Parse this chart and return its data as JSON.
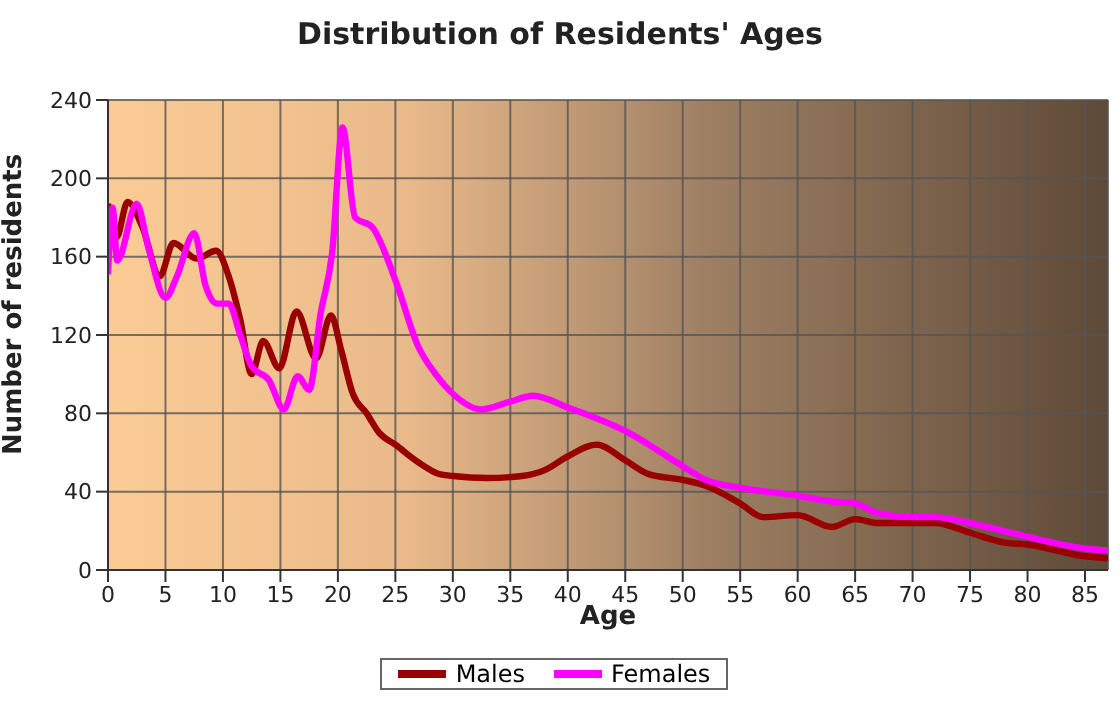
{
  "chart_data": {
    "type": "line",
    "title": "Distribution of Residents' Ages",
    "xlabel": "Age",
    "ylabel": "Number of residents",
    "xlim": [
      0,
      87
    ],
    "xticks": [
      0,
      5,
      10,
      15,
      20,
      25,
      30,
      35,
      40,
      45,
      50,
      55,
      60,
      65,
      70,
      75,
      80,
      85
    ],
    "ylim": [
      0,
      240
    ],
    "yticks": [
      0,
      40,
      80,
      120,
      160,
      200,
      240
    ],
    "grid": true,
    "legend": "bottom",
    "marker": "none",
    "line_style": "solid",
    "series": [
      {
        "name": "Males",
        "color": "#990000",
        "x": [
          0,
          0.75,
          1.7,
          3,
          4.5,
          5.7,
          7.7,
          9.4,
          10.5,
          11.5,
          12.5,
          13.5,
          14.9,
          16.4,
          18.1,
          19.4,
          20.3,
          21.3,
          22.5,
          23.6,
          25,
          27,
          28.8,
          30,
          33,
          36,
          38,
          40,
          42.5,
          45,
          47,
          50,
          52,
          55,
          57,
          60,
          63,
          65,
          67,
          70,
          72,
          75,
          78,
          80,
          85,
          87
        ],
        "values": [
          187,
          170,
          188,
          175,
          150,
          167,
          159,
          163,
          150,
          128,
          100,
          117,
          103,
          132,
          108,
          130,
          112,
          90,
          80,
          70,
          64,
          55,
          49,
          48,
          47,
          48,
          51,
          58,
          64,
          56,
          49,
          46,
          43,
          34,
          27,
          28,
          22,
          26,
          24,
          24,
          24,
          19,
          14,
          13,
          7,
          6
        ]
      },
      {
        "name": "Females",
        "color": "#ff00ff",
        "x": [
          0,
          0.4,
          0.8,
          2.5,
          3.5,
          5,
          6,
          7.5,
          8.5,
          9.5,
          10.5,
          11.5,
          12.5,
          14,
          15.3,
          16.5,
          17.5,
          18.5,
          19.5,
          20.4,
          21.5,
          23,
          25,
          27,
          28.5,
          30,
          32.5,
          35,
          37,
          40,
          45,
          50,
          52,
          55,
          60,
          63,
          65,
          67,
          70,
          72,
          75,
          80,
          83,
          85,
          87
        ],
        "values": [
          151,
          185,
          158,
          187,
          165,
          139,
          150,
          172,
          145,
          136,
          136,
          120,
          104,
          97,
          82,
          99,
          92,
          131,
          162,
          226,
          180,
          175,
          148,
          114,
          100,
          90,
          82,
          86,
          89,
          83,
          71,
          53,
          46,
          42,
          38,
          35,
          34,
          29,
          27,
          27,
          24,
          17,
          13,
          11,
          10
        ]
      }
    ]
  }
}
